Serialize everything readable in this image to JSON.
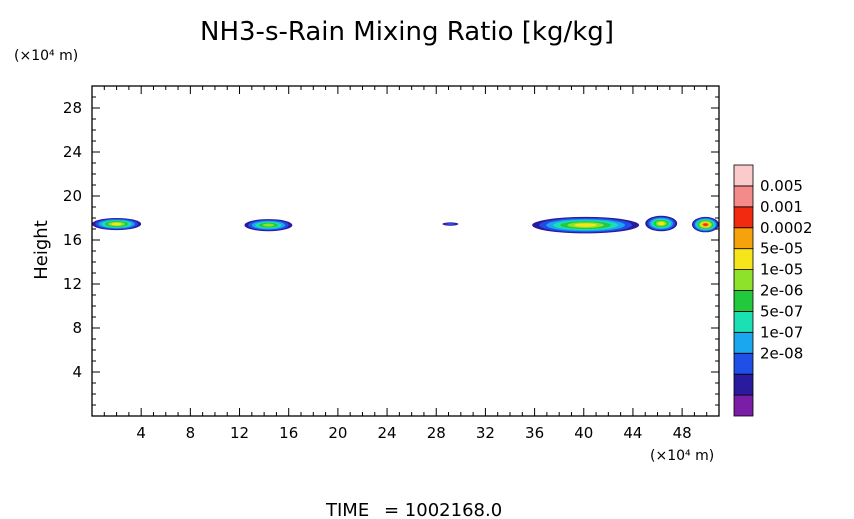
{
  "chart_data": {
    "type": "heatmap",
    "title": "NH3-s-Rain Mixing Ratio [kg/kg]",
    "ylabel": "Height",
    "x_unit": "(×10⁴ m)",
    "y_unit": "(×10⁴ m)",
    "xlim": [
      0,
      51
    ],
    "ylim": [
      0,
      30
    ],
    "x_ticks": [
      4,
      8,
      12,
      16,
      20,
      24,
      28,
      32,
      36,
      40,
      44,
      48
    ],
    "y_ticks": [
      4,
      8,
      12,
      16,
      20,
      24,
      28
    ],
    "colorbar": {
      "labels": [
        "0.005",
        "0.001",
        "0.0002",
        "5e-05",
        "1e-05",
        "2e-06",
        "5e-07",
        "1e-07",
        "2e-08"
      ],
      "colors": [
        "#7a1ea8",
        "#2a1a9e",
        "#1f4fe6",
        "#1aa7f0",
        "#1ae0b4",
        "#22c93c",
        "#8ee22a",
        "#f5e51a",
        "#f5a20c",
        "#f22a10",
        "#f58a8a",
        "#fbcaca"
      ]
    },
    "regions": [
      {
        "x": [
          0,
          4.0
        ],
        "y": [
          16.9,
          18.0
        ],
        "peak": "5e-05"
      },
      {
        "x": [
          12.4,
          16.3
        ],
        "y": [
          16.8,
          17.9
        ],
        "peak": "1e-05"
      },
      {
        "x": [
          28.5,
          29.8
        ],
        "y": [
          17.3,
          17.6
        ],
        "peak": "2e-08"
      },
      {
        "x": [
          35.8,
          44.5
        ],
        "y": [
          16.6,
          18.1
        ],
        "peak": "5e-05"
      },
      {
        "x": [
          45.0,
          47.6
        ],
        "y": [
          16.8,
          18.2
        ],
        "peak": "5e-05"
      },
      {
        "x": [
          48.8,
          51.0
        ],
        "y": [
          16.7,
          18.1
        ],
        "peak": "0.001"
      }
    ]
  },
  "footer": {
    "time_label": "TIME",
    "time_value": "= 1002168.0"
  }
}
